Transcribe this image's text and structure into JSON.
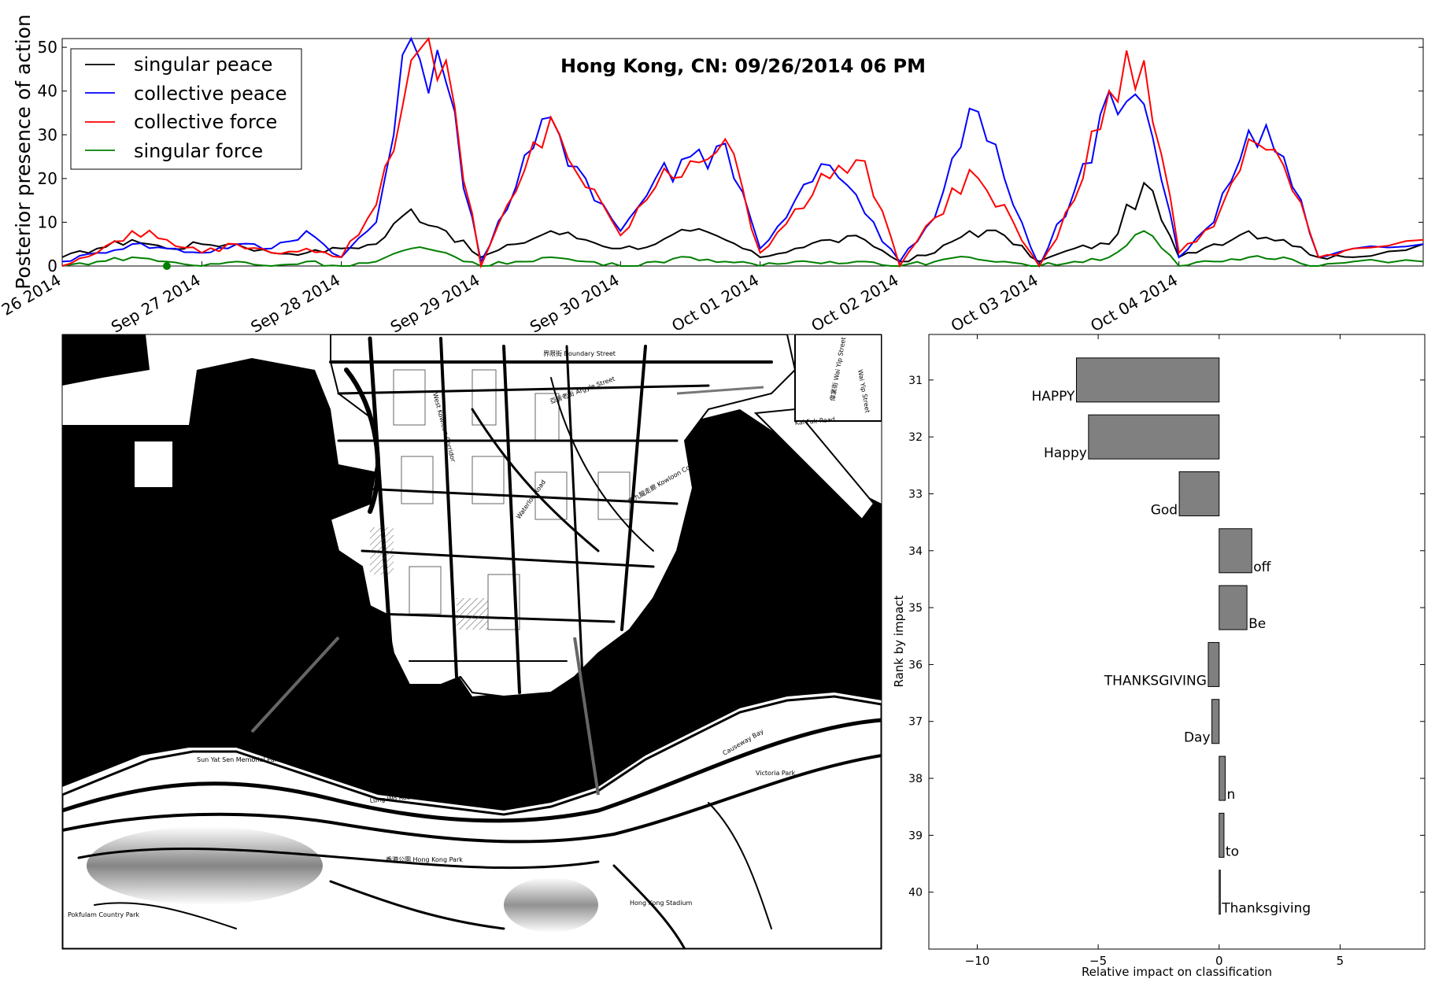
{
  "colors": {
    "singular_peace": "#000000",
    "collective_peace": "#0000ff",
    "collective_force": "#ff0000",
    "singular_force": "#008000",
    "bar_fill": "#808080",
    "water": "#000000",
    "land": "#ffffff"
  },
  "chart_data": [
    {
      "type": "line",
      "title": "Hong Kong, CN: 09/26/2014 06 PM",
      "xlabel": "",
      "ylabel": "Posterior presence of action",
      "ylim": [
        0,
        52
      ],
      "yticks": [
        0,
        10,
        20,
        30,
        40,
        50
      ],
      "x_range": [
        "2014-09-26 00:00",
        "2014-10-05 18:00"
      ],
      "x_ticks": [
        "Sep 26 2014",
        "Sep 27 2014",
        "Sep 28 2014",
        "Sep 29 2014",
        "Sep 30 2014",
        "Oct 01 2014",
        "Oct 02 2014",
        "Oct 03 2014",
        "Oct 04 2014"
      ],
      "legend_position": "top-left",
      "grid": false,
      "marker": {
        "x": "2014-09-26 18:00",
        "y": 0
      },
      "series": [
        {
          "name": "singular peace",
          "color": "#000000",
          "anchors": [
            [
              "2014-09-26 00:00",
              2
            ],
            [
              "2014-09-26 06:00",
              4
            ],
            [
              "2014-09-26 12:00",
              6
            ],
            [
              "2014-09-26 18:00",
              4
            ],
            [
              "2014-09-27 00:00",
              5
            ],
            [
              "2014-09-27 06:00",
              5
            ],
            [
              "2014-09-27 12:00",
              3
            ],
            [
              "2014-09-27 18:00",
              3
            ],
            [
              "2014-09-28 00:00",
              4
            ],
            [
              "2014-09-28 06:00",
              5
            ],
            [
              "2014-09-28 12:00",
              13
            ],
            [
              "2014-09-28 18:00",
              8
            ],
            [
              "2014-09-29 00:00",
              2
            ],
            [
              "2014-09-29 06:00",
              5
            ],
            [
              "2014-09-29 12:00",
              8
            ],
            [
              "2014-09-29 18:00",
              6
            ],
            [
              "2014-09-30 00:00",
              4
            ],
            [
              "2014-09-30 06:00",
              5
            ],
            [
              "2014-09-30 12:00",
              8
            ],
            [
              "2014-09-30 18:00",
              6
            ],
            [
              "2014-10-01 00:00",
              2
            ],
            [
              "2014-10-01 06:00",
              4
            ],
            [
              "2014-10-01 12:00",
              6
            ],
            [
              "2014-10-01 18:00",
              6
            ],
            [
              "2014-10-02 00:00",
              1
            ],
            [
              "2014-10-02 06:00",
              3
            ],
            [
              "2014-10-02 12:00",
              8
            ],
            [
              "2014-10-02 18:00",
              7
            ],
            [
              "2014-10-03 00:00",
              1
            ],
            [
              "2014-10-03 06:00",
              4
            ],
            [
              "2014-10-03 12:00",
              5
            ],
            [
              "2014-10-03 18:00",
              19
            ],
            [
              "2014-10-04 00:00",
              2
            ],
            [
              "2014-10-04 06:00",
              5
            ],
            [
              "2014-10-04 12:00",
              8
            ],
            [
              "2014-10-04 18:00",
              6
            ],
            [
              "2014-10-05 00:00",
              2
            ],
            [
              "2014-10-05 06:00",
              2
            ],
            [
              "2014-10-05 18:00",
              5
            ]
          ]
        },
        {
          "name": "collective peace",
          "color": "#0000ff",
          "anchors": [
            [
              "2014-09-26 00:00",
              1
            ],
            [
              "2014-09-26 06:00",
              3
            ],
            [
              "2014-09-26 12:00",
              5
            ],
            [
              "2014-09-26 18:00",
              4
            ],
            [
              "2014-09-27 00:00",
              3
            ],
            [
              "2014-09-27 06:00",
              5
            ],
            [
              "2014-09-27 12:00",
              4
            ],
            [
              "2014-09-27 18:00",
              8
            ],
            [
              "2014-09-28 00:00",
              2
            ],
            [
              "2014-09-28 06:00",
              10
            ],
            [
              "2014-09-28 12:00",
              52
            ],
            [
              "2014-09-28 18:00",
              42
            ],
            [
              "2014-09-29 00:00",
              1
            ],
            [
              "2014-09-29 06:00",
              18
            ],
            [
              "2014-09-29 12:00",
              34
            ],
            [
              "2014-09-29 18:00",
              20
            ],
            [
              "2014-09-30 00:00",
              8
            ],
            [
              "2014-09-30 06:00",
              20
            ],
            [
              "2014-09-30 12:00",
              25
            ],
            [
              "2014-09-30 18:00",
              28
            ],
            [
              "2014-10-01 00:00",
              4
            ],
            [
              "2014-10-01 06:00",
              15
            ],
            [
              "2014-10-01 12:00",
              23
            ],
            [
              "2014-10-01 18:00",
              12
            ],
            [
              "2014-10-02 00:00",
              1
            ],
            [
              "2014-10-02 06:00",
              11
            ],
            [
              "2014-10-02 12:00",
              36
            ],
            [
              "2014-10-02 18:00",
              20
            ],
            [
              "2014-10-03 00:00",
              0
            ],
            [
              "2014-10-03 06:00",
              17
            ],
            [
              "2014-10-03 12:00",
              40
            ],
            [
              "2014-10-03 18:00",
              37
            ],
            [
              "2014-10-04 00:00",
              2
            ],
            [
              "2014-10-04 06:00",
              10
            ],
            [
              "2014-10-04 12:00",
              31
            ],
            [
              "2014-10-04 18:00",
              25
            ],
            [
              "2014-10-05 00:00",
              2
            ],
            [
              "2014-10-05 06:00",
              4
            ],
            [
              "2014-10-05 18:00",
              5
            ]
          ]
        },
        {
          "name": "collective force",
          "color": "#ff0000",
          "anchors": [
            [
              "2014-09-26 00:00",
              0
            ],
            [
              "2014-09-26 06:00",
              3
            ],
            [
              "2014-09-26 12:00",
              8
            ],
            [
              "2014-09-26 18:00",
              6
            ],
            [
              "2014-09-27 00:00",
              3
            ],
            [
              "2014-09-27 06:00",
              5
            ],
            [
              "2014-09-27 12:00",
              3
            ],
            [
              "2014-09-27 18:00",
              4
            ],
            [
              "2014-09-28 00:00",
              2
            ],
            [
              "2014-09-28 06:00",
              14
            ],
            [
              "2014-09-28 12:00",
              47
            ],
            [
              "2014-09-28 18:00",
              47
            ],
            [
              "2014-09-29 00:00",
              0
            ],
            [
              "2014-09-29 06:00",
              17
            ],
            [
              "2014-09-29 12:00",
              34
            ],
            [
              "2014-09-29 18:00",
              18
            ],
            [
              "2014-09-30 00:00",
              7
            ],
            [
              "2014-09-30 06:00",
              18
            ],
            [
              "2014-09-30 12:00",
              24
            ],
            [
              "2014-09-30 18:00",
              29
            ],
            [
              "2014-10-01 00:00",
              3
            ],
            [
              "2014-10-01 06:00",
              13
            ],
            [
              "2014-10-01 12:00",
              20
            ],
            [
              "2014-10-01 18:00",
              24
            ],
            [
              "2014-10-02 00:00",
              0
            ],
            [
              "2014-10-02 06:00",
              11
            ],
            [
              "2014-10-02 12:00",
              22
            ],
            [
              "2014-10-02 18:00",
              14
            ],
            [
              "2014-10-03 00:00",
              0
            ],
            [
              "2014-10-03 06:00",
              15
            ],
            [
              "2014-10-03 12:00",
              40
            ],
            [
              "2014-10-03 18:00",
              47
            ],
            [
              "2014-10-04 00:00",
              3
            ],
            [
              "2014-10-04 06:00",
              9
            ],
            [
              "2014-10-04 12:00",
              29
            ],
            [
              "2014-10-04 18:00",
              23
            ],
            [
              "2014-10-05 00:00",
              2
            ],
            [
              "2014-10-05 06:00",
              4
            ],
            [
              "2014-10-05 18:00",
              6
            ]
          ]
        },
        {
          "name": "singular force",
          "color": "#008000",
          "anchors": [
            [
              "2014-09-26 00:00",
              0
            ],
            [
              "2014-09-26 06:00",
              1
            ],
            [
              "2014-09-26 12:00",
              2
            ],
            [
              "2014-09-26 18:00",
              1
            ],
            [
              "2014-09-27 00:00",
              0
            ],
            [
              "2014-09-27 06:00",
              1
            ],
            [
              "2014-09-27 12:00",
              0
            ],
            [
              "2014-09-27 18:00",
              1
            ],
            [
              "2014-09-28 00:00",
              0
            ],
            [
              "2014-09-28 06:00",
              1
            ],
            [
              "2014-09-28 12:00",
              4
            ],
            [
              "2014-09-28 18:00",
              3
            ],
            [
              "2014-09-29 00:00",
              0
            ],
            [
              "2014-09-29 06:00",
              1
            ],
            [
              "2014-09-29 12:00",
              2
            ],
            [
              "2014-09-29 18:00",
              1
            ],
            [
              "2014-09-30 00:00",
              0
            ],
            [
              "2014-09-30 06:00",
              1
            ],
            [
              "2014-09-30 12:00",
              2
            ],
            [
              "2014-09-30 18:00",
              1
            ],
            [
              "2014-10-01 00:00",
              0
            ],
            [
              "2014-10-01 06:00",
              1
            ],
            [
              "2014-10-01 12:00",
              1
            ],
            [
              "2014-10-01 18:00",
              1
            ],
            [
              "2014-10-02 00:00",
              0
            ],
            [
              "2014-10-02 06:00",
              1
            ],
            [
              "2014-10-02 12:00",
              2
            ],
            [
              "2014-10-02 18:00",
              1
            ],
            [
              "2014-10-03 00:00",
              0
            ],
            [
              "2014-10-03 06:00",
              1
            ],
            [
              "2014-10-03 12:00",
              2
            ],
            [
              "2014-10-03 18:00",
              8
            ],
            [
              "2014-10-04 00:00",
              0
            ],
            [
              "2014-10-04 06:00",
              1
            ],
            [
              "2014-10-04 12:00",
              2
            ],
            [
              "2014-10-04 18:00",
              2
            ],
            [
              "2014-10-05 00:00",
              0
            ],
            [
              "2014-10-05 06:00",
              1
            ],
            [
              "2014-10-05 18:00",
              1
            ]
          ]
        }
      ]
    },
    {
      "type": "bar",
      "orientation": "horizontal",
      "title": "",
      "xlabel": "Relative impact on classification",
      "ylabel": "Rank by impact",
      "xlim": [
        -12,
        8.5
      ],
      "xticks": [
        -10,
        -5,
        0,
        5
      ],
      "xtick_labels": [
        "−10",
        "−5",
        "0",
        "5"
      ],
      "ylim": [
        41,
        30.2
      ],
      "categories": [
        "31",
        "32",
        "33",
        "34",
        "35",
        "36",
        "37",
        "38",
        "39",
        "40"
      ],
      "words": [
        "HAPPY",
        "Happy",
        "God",
        "off",
        "Be",
        "THANKSGIVING",
        "Day",
        "n",
        "to",
        "Thanksgiving"
      ],
      "values": [
        -5.9,
        -5.4,
        -1.65,
        1.35,
        1.15,
        -0.45,
        -0.3,
        0.25,
        0.2,
        0.03
      ]
    }
  ],
  "map": {
    "labels": [
      "界限街 Boundary Street",
      "亞皆老街 Argyle Street",
      "West Kowloon Corridor",
      "東九龍走廊 Kowloon Corridor",
      "Waterloo Road",
      "Wai Yip Street",
      "偉業街 Wai Yip Street",
      "Kai Fuk Road",
      "Lung Wo Road",
      "Sun Yat Sen Memorial Park",
      "Victoria Park",
      "香港公園 Hong Kong Park",
      "Hong Kong Stadium",
      "Causeway Bay",
      "Pokfulam Country Park"
    ]
  }
}
